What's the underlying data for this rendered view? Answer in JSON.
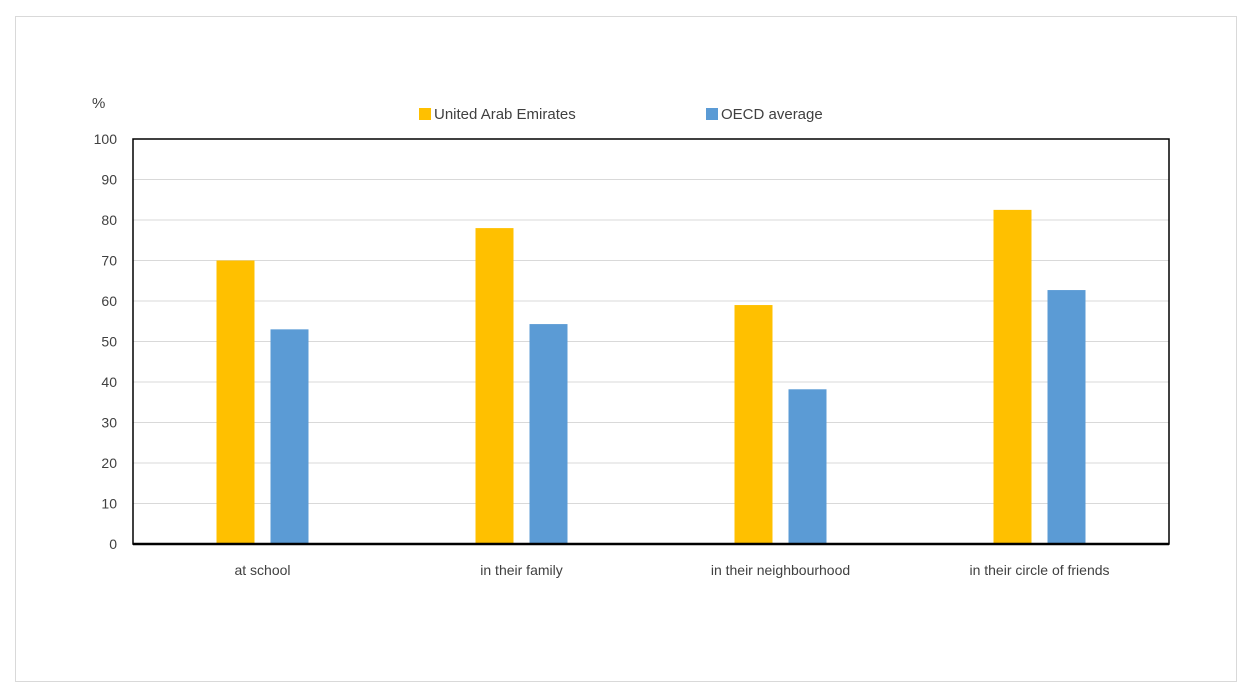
{
  "chart_data": {
    "type": "bar",
    "ylabel": "%",
    "ylim": [
      0,
      100
    ],
    "yticks": [
      0,
      10,
      20,
      30,
      40,
      50,
      60,
      70,
      80,
      90,
      100
    ],
    "grid": true,
    "legend_position": "top-center",
    "categories": [
      "at school",
      "in their family",
      "in their neighbourhood",
      "in their circle of friends"
    ],
    "series": [
      {
        "name": "United Arab Emirates",
        "color": "#FFC000",
        "values": [
          70,
          78,
          59,
          82.5
        ]
      },
      {
        "name": "OECD average",
        "color": "#5B9BD5",
        "values": [
          53,
          54.3,
          38.2,
          62.7
        ]
      }
    ]
  }
}
